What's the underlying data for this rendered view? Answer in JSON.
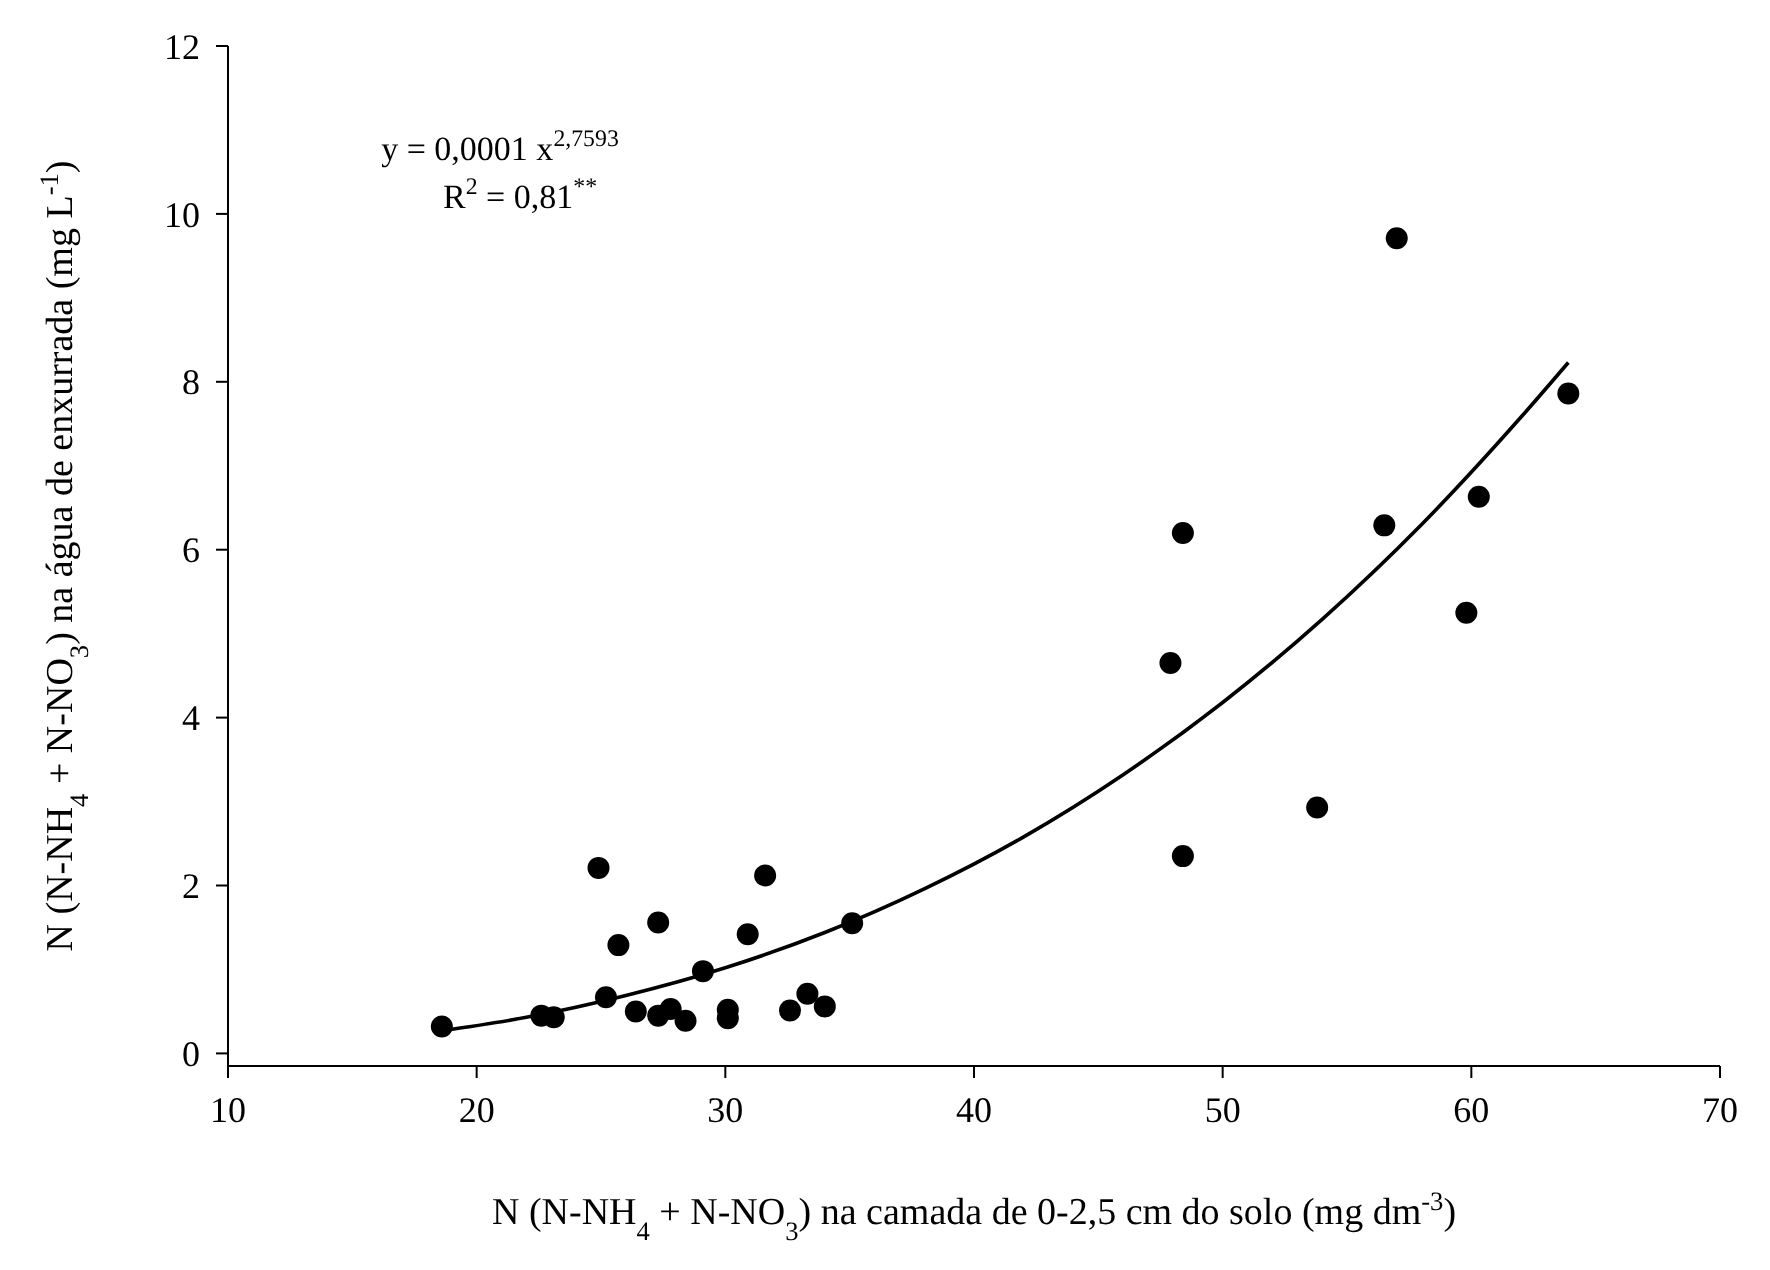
{
  "chart_data": {
    "type": "scatter",
    "xlabel": "N (N-NH$_{4}$ + N-NO$_{3}$) na camada de 0-2,5 cm do solo (mg dm$^{-3}$)",
    "ylabel": "N (N-NH$_{4}$ + N-NO$_{3}$) na água de enxurrada (mg L$^{-1}$)",
    "annotations": [
      "y = 0,0001 x$^{2,7593}$",
      "R$^{2}$ = 0,81$^{**}$"
    ],
    "xlim": [
      10,
      70
    ],
    "xticks": [
      10,
      20,
      30,
      40,
      50,
      60,
      70
    ],
    "ylim": [
      -0.15,
      12
    ],
    "yticks": [
      0,
      2,
      4,
      6,
      8,
      10,
      12
    ],
    "series": [
      {
        "color": "#000000",
        "marker": "circle",
        "x": [
          18.6,
          22.6,
          23.1,
          24.9,
          25.2,
          25.7,
          26.4,
          27.3,
          27.3,
          27.8,
          28.4,
          29.1,
          30.1,
          30.1,
          30.9,
          31.6,
          32.6,
          33.3,
          34.0,
          35.1,
          48.4,
          47.9,
          48.4,
          53.8,
          57.0,
          56.5,
          59.8,
          60.3,
          63.9
        ],
        "values": [
          0.32,
          0.45,
          0.43,
          2.21,
          0.67,
          1.29,
          0.5,
          1.56,
          0.45,
          0.53,
          0.39,
          0.98,
          0.52,
          0.42,
          1.42,
          2.12,
          0.51,
          0.71,
          0.56,
          1.55,
          6.2,
          4.65,
          2.35,
          2.93,
          9.71,
          6.29,
          5.25,
          6.63,
          7.86
        ]
      },
      {
        "type": "line",
        "color": "#000000",
        "marker": "none",
        "line_style": "solid",
        "x": [
          18.6,
          22,
          26,
          30,
          34,
          38,
          42,
          46,
          50,
          54,
          58,
          62,
          63.9
        ],
        "values": [
          0.27,
          0.43,
          0.69,
          1.02,
          1.44,
          1.96,
          2.58,
          3.32,
          4.18,
          5.17,
          6.3,
          7.58,
          8.23
        ]
      }
    ]
  }
}
